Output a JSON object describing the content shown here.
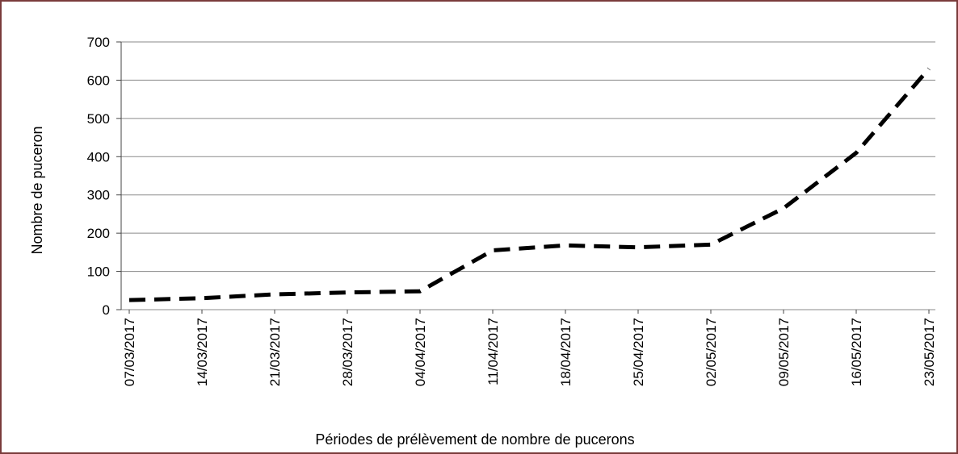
{
  "chart_data": {
    "type": "line",
    "categories": [
      "07/03/2017",
      "14/03/2017",
      "21/03/2017",
      "28/03/2017",
      "04/04/2017",
      "11/04/2017",
      "18/04/2017",
      "25/04/2017",
      "02/05/2017",
      "09/05/2017",
      "16/05/2017",
      "23/05/2017"
    ],
    "values": [
      25,
      30,
      40,
      45,
      48,
      155,
      168,
      163,
      170,
      265,
      410,
      630
    ],
    "color": "#000000",
    "xlabel": "Périodes de prélèvement  de nombre de pucerons",
    "ylabel": "Nombre de puceron",
    "ylim": [
      0,
      700
    ],
    "yticks": [
      0,
      100,
      200,
      300,
      400,
      500,
      600,
      700
    ],
    "grid": true
  }
}
